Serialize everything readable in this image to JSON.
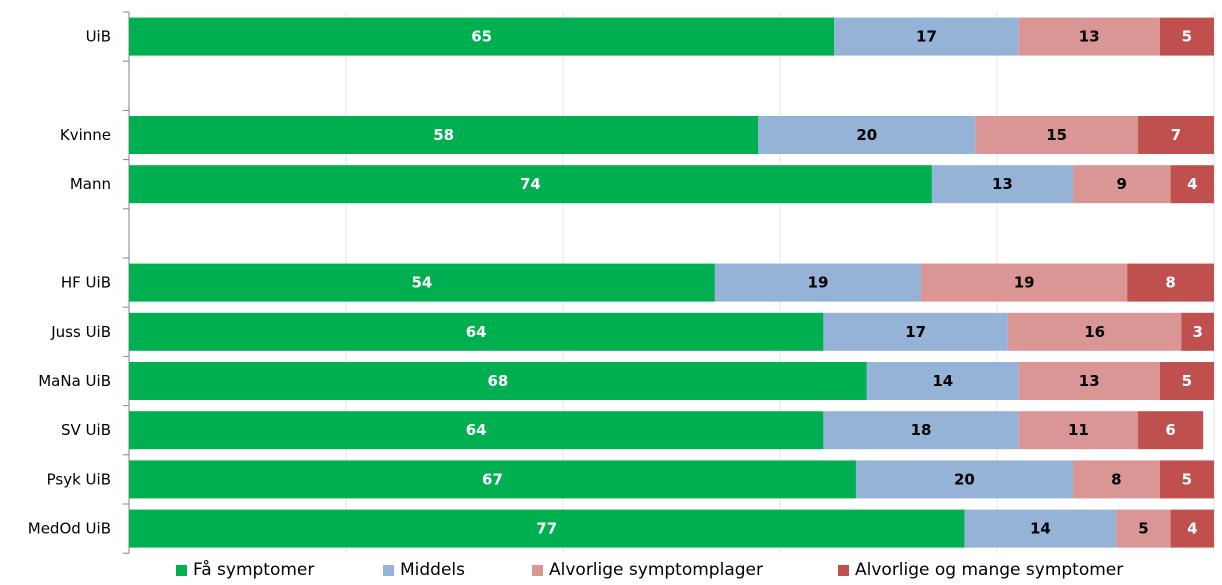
{
  "chart_data": {
    "type": "bar",
    "orientation": "horizontal",
    "stacked": true,
    "xlim": [
      0,
      100
    ],
    "grid": true,
    "legend_position": "bottom",
    "categories": [
      "UiB",
      "",
      "Kvinne",
      "Mann",
      "",
      "HF UiB",
      "Juss UiB",
      "MaNa UiB",
      "SV UiB",
      "Psyk UiB",
      "MedOd UiB"
    ],
    "series": [
      {
        "name": "Få symptomer",
        "color": "#00b050",
        "label_color": "#ffffff",
        "values": [
          65,
          null,
          58,
          74,
          null,
          54,
          64,
          68,
          64,
          67,
          77
        ]
      },
      {
        "name": "Middels",
        "color": "#95b3d7",
        "label_color": "#000000",
        "values": [
          17,
          null,
          20,
          13,
          null,
          19,
          17,
          14,
          18,
          20,
          14
        ]
      },
      {
        "name": "Alvorlige symptomplager",
        "color": "#da9694",
        "label_color": "#000000",
        "values": [
          13,
          null,
          15,
          9,
          null,
          19,
          16,
          13,
          11,
          8,
          5
        ]
      },
      {
        "name": "Alvorlige og mange symptomer",
        "color": "#c0504d",
        "label_color": "#ffffff",
        "values": [
          5,
          null,
          7,
          4,
          null,
          8,
          3,
          5,
          6,
          5,
          4
        ]
      }
    ]
  }
}
